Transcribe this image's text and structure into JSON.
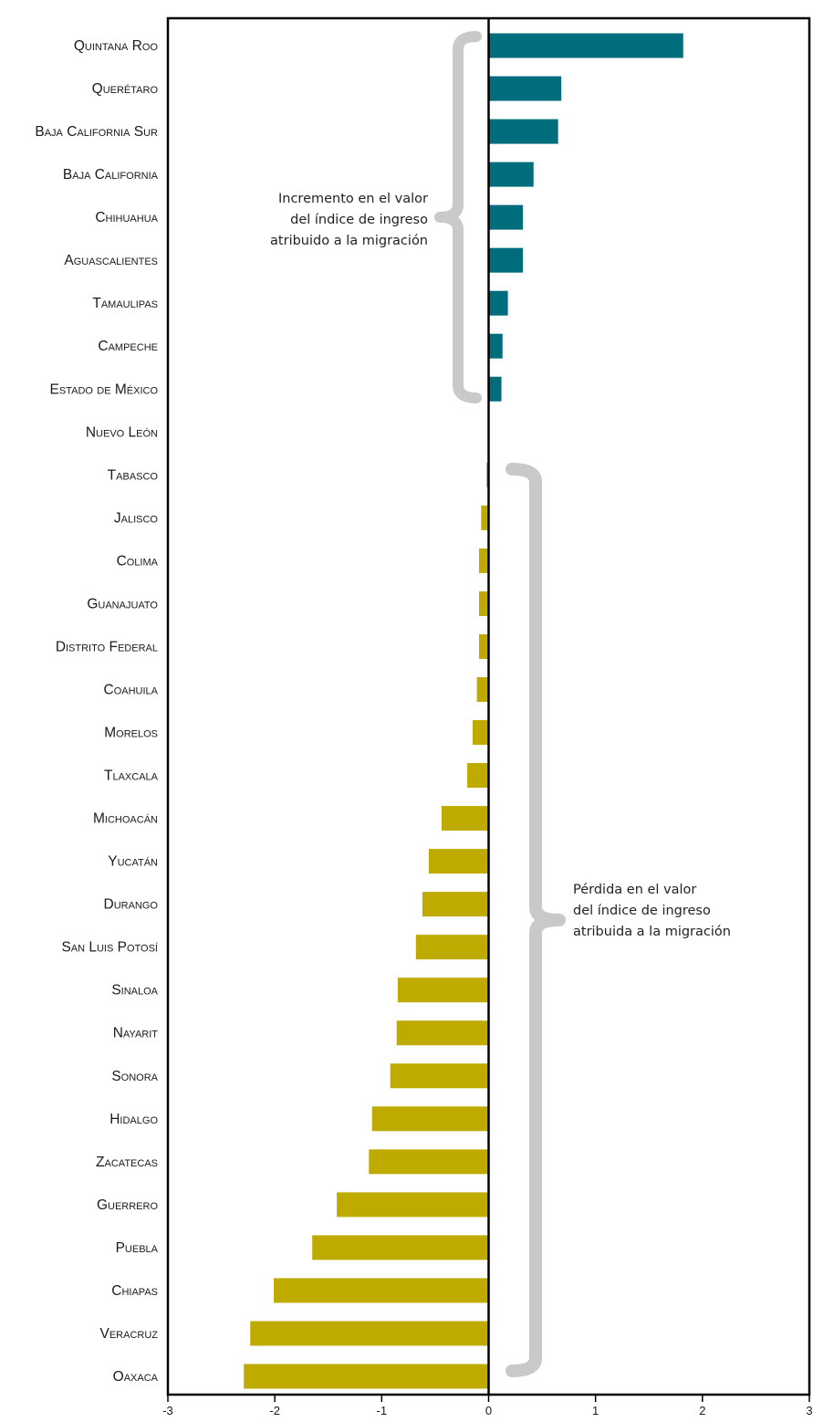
{
  "chart_data": {
    "type": "bar",
    "orientation": "horizontal",
    "categories": [
      "Quintana Roo",
      "Querétaro",
      "Baja California Sur",
      "Baja California",
      "Chihuahua",
      "Aguascalientes",
      "Tamaulipas",
      "Campeche",
      "Estado de México",
      "Nuevo León",
      "Tabasco",
      "Jalisco",
      "Colima",
      "Guanajuato",
      "Distrito Federal",
      "Coahuila",
      "Morelos",
      "Tlaxcala",
      "Michoacán",
      "Yucatán",
      "Durango",
      "San Luis Potosí",
      "Sinaloa",
      "Nayarit",
      "Sonora",
      "Hidalgo",
      "Zacatecas",
      "Guerrero",
      "Puebla",
      "Chiapas",
      "Veracruz",
      "Oaxaca"
    ],
    "values": [
      1.82,
      0.68,
      0.65,
      0.42,
      0.32,
      0.32,
      0.18,
      0.13,
      0.12,
      0.0,
      -0.02,
      -0.07,
      -0.09,
      -0.09,
      -0.09,
      -0.11,
      -0.15,
      -0.2,
      -0.44,
      -0.56,
      -0.62,
      -0.68,
      -0.85,
      -0.86,
      -0.92,
      -1.09,
      -1.12,
      -1.42,
      -1.65,
      -2.01,
      -2.23,
      -2.29
    ],
    "xlim": [
      -3,
      3
    ],
    "xticks": [
      "-3",
      "-2",
      "-1",
      "0",
      "1",
      "2",
      "3"
    ],
    "colors": {
      "positive": "#006d7d",
      "negative": "#bfab00",
      "brace": "#c9c9c9",
      "axis": "#000000"
    },
    "annotations": {
      "positive": [
        "Incremento en el valor",
        "del índice de ingreso",
        "atribuido a la migración"
      ],
      "negative": [
        "Pérdida en el valor",
        "del índice de ingreso",
        "atribuida a la migración"
      ]
    },
    "grid": false
  }
}
